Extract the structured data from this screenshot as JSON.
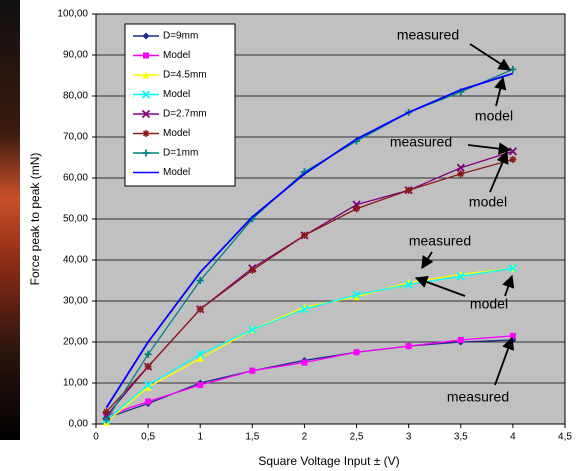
{
  "chart_data": {
    "type": "line",
    "x": [
      0.1,
      0.5,
      1,
      1.5,
      2,
      2.5,
      3,
      3.5,
      4
    ],
    "series": [
      {
        "name": "D=9mm",
        "color": "#1c2a8c",
        "marker": "diamond",
        "values": [
          1.5,
          5,
          10,
          13,
          15.5,
          17.5,
          19,
          20,
          20.5
        ]
      },
      {
        "name": "Model",
        "color": "#ff00ff",
        "marker": "square",
        "values": [
          2,
          5.5,
          9.5,
          13,
          15,
          17.5,
          19,
          20.5,
          21.5
        ]
      },
      {
        "name": "D=4.5mm",
        "color": "#ffff00",
        "marker": "triangle",
        "values": [
          0.5,
          9,
          16,
          23,
          28.5,
          31,
          34.5,
          36.5,
          38
        ]
      },
      {
        "name": "Model",
        "color": "#00ffff",
        "marker": "x",
        "values": [
          1,
          9.5,
          17,
          23,
          28,
          31.5,
          34,
          36,
          38
        ]
      },
      {
        "name": "D=2.7mm",
        "color": "#800080",
        "marker": "x",
        "values": [
          2,
          14,
          28,
          38,
          46,
          53.5,
          57,
          62.5,
          66.5
        ]
      },
      {
        "name": "Model",
        "color": "#8b1a1a",
        "marker": "star",
        "values": [
          3,
          14,
          28,
          37.5,
          46,
          52.5,
          57,
          61,
          64.5
        ]
      },
      {
        "name": "D=1mm",
        "color": "#008080",
        "marker": "plus",
        "values": [
          1,
          17,
          35,
          50,
          61.5,
          69,
          76,
          81,
          86.5
        ]
      },
      {
        "name": "Model",
        "color": "#0000ff",
        "values": [
          4,
          20,
          37,
          50.5,
          61,
          69.5,
          76,
          81.5,
          85.5
        ]
      }
    ],
    "xlabel": "Square Voltage Input ± (V)",
    "ylabel": "Force peak to peak (mN)",
    "xlim": [
      0,
      4.5
    ],
    "xticks": [
      0,
      {
        "value": 0.5,
        "label": "0,5"
      },
      1,
      {
        "value": 1.5,
        "label": "1,5"
      },
      2,
      {
        "value": 2.5,
        "label": "2,5"
      },
      3,
      {
        "value": 3.5,
        "label": "3,5"
      },
      4,
      {
        "value": 4.5,
        "label": "4,5"
      }
    ],
    "ylim": [
      0,
      100
    ],
    "yticks": [
      {
        "value": 0,
        "label": "0,00"
      },
      {
        "value": 10,
        "label": "10,00"
      },
      {
        "value": 20,
        "label": "20,00"
      },
      {
        "value": 30,
        "label": "30,00"
      },
      {
        "value": 40,
        "label": "40,00"
      },
      {
        "value": 50,
        "label": "50,00"
      },
      {
        "value": 60,
        "label": "60,00"
      },
      {
        "value": 70,
        "label": "70,00"
      },
      {
        "value": 80,
        "label": "80,00"
      },
      {
        "value": 90,
        "label": "90,00"
      },
      {
        "value": 100,
        "label": "100,00"
      }
    ],
    "grid": true,
    "legend": "upper left",
    "annotations": [
      "measured",
      "model",
      "measured",
      "model",
      "measured",
      "model",
      "measured"
    ]
  }
}
